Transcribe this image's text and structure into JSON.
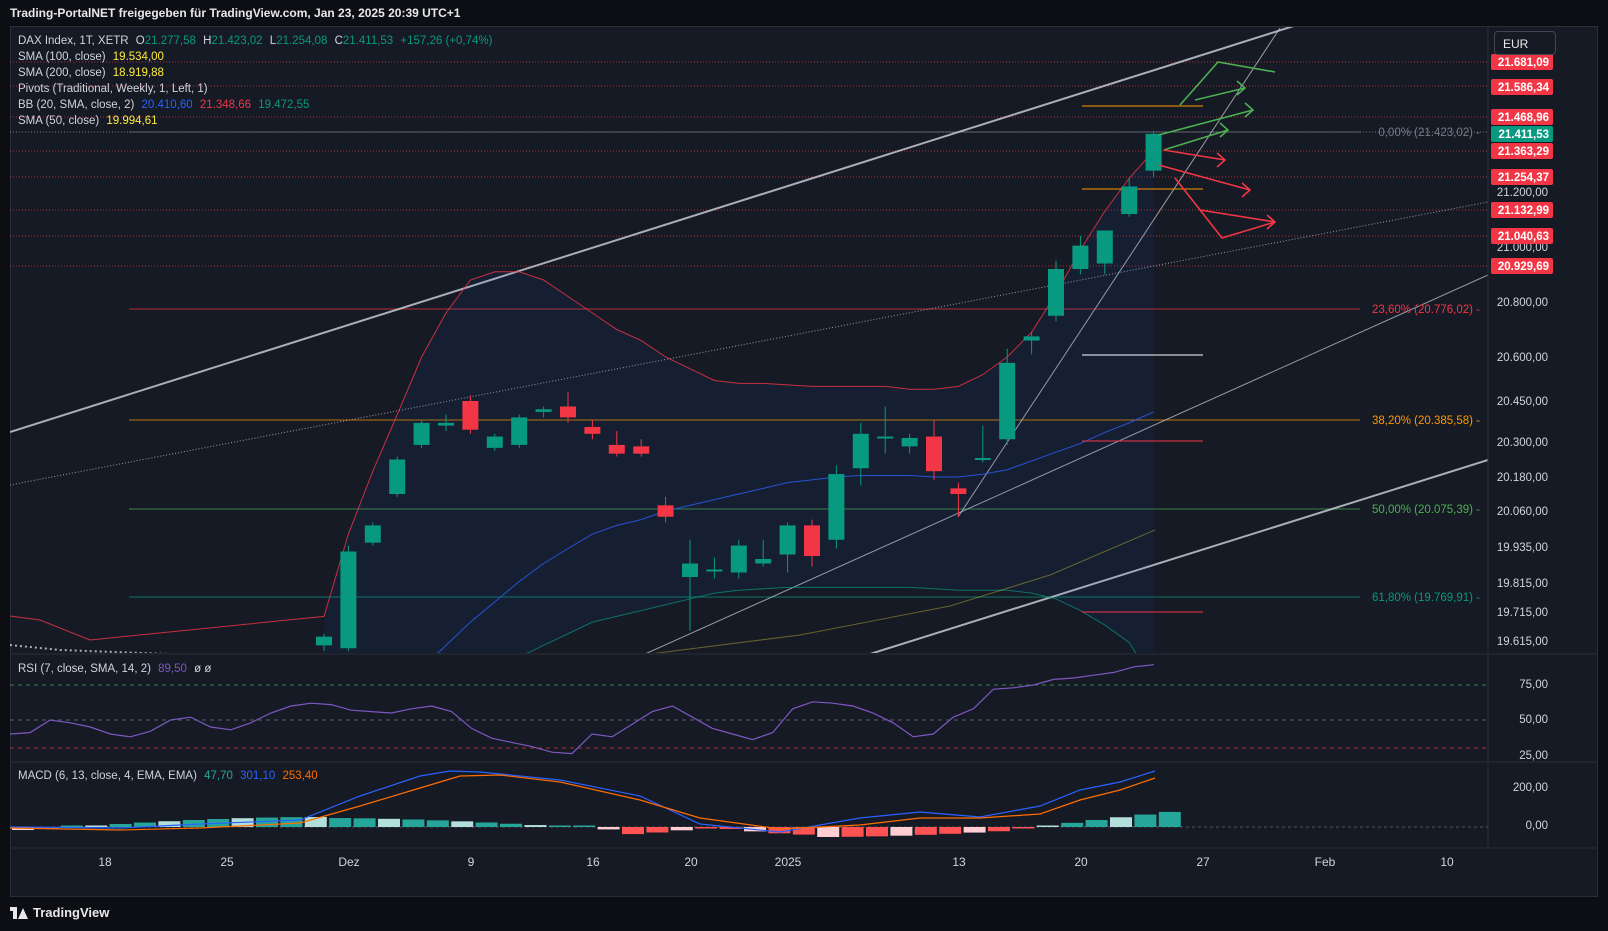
{
  "header": {
    "title": "Trading-PortalNET freigegeben für TradingView.com, Jan 23, 2025 20:39 UTC+1"
  },
  "legend": {
    "symbol": "DAX Index, 1T, XETR",
    "ohlc": {
      "o_label": "O",
      "o": "21.277,58",
      "h_label": "H",
      "h": "21.423,02",
      "l_label": "L",
      "l": "21.254,08",
      "c_label": "C",
      "c": "21.411,53",
      "change": "+157,26 (+0,74%)"
    },
    "indicators": [
      {
        "label": "SMA (100, close)",
        "values": [
          "19.534,00"
        ],
        "colors": [
          "#ffeb3b"
        ]
      },
      {
        "label": "SMA (200, close)",
        "values": [
          "18.919,88"
        ],
        "colors": [
          "#ffeb3b"
        ]
      },
      {
        "label": "Pivots (Traditional, Weekly, 1, Left, 1)",
        "values": [],
        "colors": []
      },
      {
        "label": "BB (20, SMA, close, 2)",
        "values": [
          "20.410,60",
          "21.348,66",
          "19.472,55"
        ],
        "colors": [
          "#2962ff",
          "#f23645",
          "#089981"
        ]
      },
      {
        "label": "SMA (50, close)",
        "values": [
          "19.994,61"
        ],
        "colors": [
          "#ffeb3b"
        ]
      }
    ]
  },
  "currency_button": "EUR",
  "rsi_legend": {
    "label": "RSI (7, close, SMA, 14, 2)",
    "value": "89,50",
    "extra": "ø ø"
  },
  "macd_legend": {
    "label": "MACD (6, 13, close, 4, EMA, EMA)",
    "values": [
      "47,70",
      "301,10",
      "253,40"
    ],
    "colors": [
      "#26a69a",
      "#2962ff",
      "#ff6d00"
    ]
  },
  "footer": {
    "brand": "TradingView"
  },
  "colors": {
    "up": "#089981",
    "down": "#f23645",
    "background": "#161a25"
  },
  "chart_data": [
    {
      "type": "candlestick",
      "title": "DAX Index, 1T, XETR",
      "x_tick_labels": [
        "18",
        "25",
        "Dez",
        "9",
        "16",
        "20",
        "2025",
        "13",
        "20",
        "27",
        "Feb",
        "10"
      ],
      "y_tick_labels": [
        "21.200,00",
        "21.000,00",
        "20.800,00",
        "20.600,00",
        "20.450,00",
        "20.300,00",
        "20.180,00",
        "20.060,00",
        "19.935,00",
        "19.815,00",
        "19.715,00",
        "19.615,00"
      ],
      "price_labels": [
        {
          "text": "21.681,09",
          "kind": "pivot"
        },
        {
          "text": "21.586,34",
          "kind": "pivot"
        },
        {
          "text": "21.468,96",
          "kind": "pivot"
        },
        {
          "text": "21.411,53",
          "kind": "last"
        },
        {
          "text": "21.363,29",
          "kind": "pivot"
        },
        {
          "text": "21.254,37",
          "kind": "pivot"
        },
        {
          "text": "21.132,99",
          "kind": "pivot"
        },
        {
          "text": "21.040,63",
          "kind": "pivot"
        },
        {
          "text": "20.929,69",
          "kind": "pivot"
        }
      ],
      "fibonacci": [
        {
          "label": "0,00% (21.423,02)",
          "price": 21423.02,
          "color": "#787b86"
        },
        {
          "label": "23,60% (20.776,02)",
          "price": 20776.02,
          "color": "#f23645"
        },
        {
          "label": "38,20% (20.385,58)",
          "price": 20385.58,
          "color": "#ff9800"
        },
        {
          "label": "50,00% (20.075,39)",
          "price": 20075.39,
          "color": "#4caf50"
        },
        {
          "label": "61,80% (19.769,91)",
          "price": 19769.91,
          "color": "#089981"
        }
      ],
      "candles": [
        {
          "o": 19600,
          "h": 19640,
          "l": 19580,
          "c": 19630
        },
        {
          "o": 19590,
          "h": 19940,
          "l": 19580,
          "c": 19920
        },
        {
          "o": 19950,
          "h": 20020,
          "l": 19940,
          "c": 20010
        },
        {
          "o": 20120,
          "h": 20250,
          "l": 20110,
          "c": 20240
        },
        {
          "o": 20290,
          "h": 20380,
          "l": 20280,
          "c": 20370
        },
        {
          "o": 20360,
          "h": 20400,
          "l": 20340,
          "c": 20370
        },
        {
          "o": 20450,
          "h": 20470,
          "l": 20330,
          "c": 20345
        },
        {
          "o": 20280,
          "h": 20330,
          "l": 20270,
          "c": 20320
        },
        {
          "o": 20290,
          "h": 20400,
          "l": 20280,
          "c": 20390
        },
        {
          "o": 20410,
          "h": 20430,
          "l": 20390,
          "c": 20420
        },
        {
          "o": 20430,
          "h": 20480,
          "l": 20370,
          "c": 20390
        },
        {
          "o": 20355,
          "h": 20380,
          "l": 20310,
          "c": 20330
        },
        {
          "o": 20290,
          "h": 20340,
          "l": 20250,
          "c": 20260
        },
        {
          "o": 20285,
          "h": 20310,
          "l": 20250,
          "c": 20260
        },
        {
          "o": 20080,
          "h": 20110,
          "l": 20020,
          "c": 20040
        },
        {
          "o": 19835,
          "h": 19960,
          "l": 19650,
          "c": 19880
        },
        {
          "o": 19855,
          "h": 19900,
          "l": 19830,
          "c": 19860
        },
        {
          "o": 19850,
          "h": 19960,
          "l": 19830,
          "c": 19940
        },
        {
          "o": 19880,
          "h": 19960,
          "l": 19870,
          "c": 19895
        },
        {
          "o": 19910,
          "h": 20020,
          "l": 19850,
          "c": 20010
        },
        {
          "o": 20010,
          "h": 20030,
          "l": 19870,
          "c": 19905
        },
        {
          "o": 19960,
          "h": 20220,
          "l": 19930,
          "c": 20190
        },
        {
          "o": 20210,
          "h": 20370,
          "l": 20150,
          "c": 20330
        },
        {
          "o": 20320,
          "h": 20430,
          "l": 20260,
          "c": 20320
        },
        {
          "o": 20285,
          "h": 20330,
          "l": 20260,
          "c": 20315
        },
        {
          "o": 20320,
          "h": 20380,
          "l": 20170,
          "c": 20200
        },
        {
          "o": 20140,
          "h": 20160,
          "l": 20040,
          "c": 20120
        },
        {
          "o": 20240,
          "h": 20360,
          "l": 20230,
          "c": 20245
        },
        {
          "o": 20310,
          "h": 20630,
          "l": 20290,
          "c": 20580
        },
        {
          "o": 20660,
          "h": 20690,
          "l": 20610,
          "c": 20675
        },
        {
          "o": 20750,
          "h": 20950,
          "l": 20730,
          "c": 20920
        },
        {
          "o": 20920,
          "h": 21040,
          "l": 20900,
          "c": 21005
        },
        {
          "o": 20940,
          "h": 21060,
          "l": 20900,
          "c": 21060
        },
        {
          "o": 21120,
          "h": 21250,
          "l": 21110,
          "c": 21220
        },
        {
          "o": 21277.58,
          "h": 21423.02,
          "l": 21254.08,
          "c": 21411.53
        }
      ],
      "rsi": {
        "y_tick_labels": [
          "75,00",
          "50,00",
          "25,00"
        ],
        "values": [
          40,
          41,
          50,
          48,
          45,
          40,
          38,
          42,
          50,
          52,
          45,
          43,
          48,
          55,
          60,
          62,
          61,
          57,
          56,
          55,
          58,
          60,
          56,
          44,
          37,
          34,
          31,
          27,
          26,
          40,
          38,
          47,
          56,
          60,
          52,
          44,
          40,
          36,
          41,
          58,
          63,
          62,
          60,
          55,
          48,
          38,
          40,
          52,
          58,
          72,
          73,
          75,
          79,
          80,
          82,
          84,
          88,
          89.5
        ]
      },
      "macd": {
        "y_tick_labels": [
          "200,00",
          "0,00"
        ]
      }
    }
  ]
}
